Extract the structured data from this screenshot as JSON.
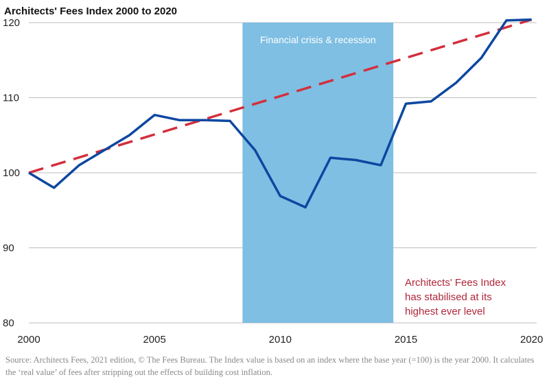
{
  "title": "Architects' Fees Index 2000 to 2020",
  "source": "Source:  Architects Fees, 2021 edition, © The Fees Bureau. The Index value is based on an index where the base year (=100) is the year 2000. It calculates the ‘real value’ of fees after stripping out the effects of building cost inflation.",
  "colors": {
    "index_line": "#0d47a1",
    "trend_line": "#d32f3c",
    "band": "#7fbfe3",
    "annotation": "#b0263a",
    "grid": "#bdbdbd"
  },
  "chart_data": {
    "type": "line",
    "title": "Architects' Fees Index 2000 to 2020",
    "xlabel": "",
    "ylabel": "",
    "xlim": [
      2000,
      2020.2
    ],
    "ylim": [
      80,
      121
    ],
    "x_ticks": [
      2000,
      2005,
      2010,
      2015,
      2020
    ],
    "y_ticks": [
      80,
      90,
      100,
      110,
      120
    ],
    "grid": "horizontal",
    "series": [
      {
        "style": "solid",
        "x": [
          2000,
          2001,
          2002,
          2003,
          2004,
          2005,
          2006,
          2007,
          2008,
          2009,
          2010,
          2011,
          2012,
          2013,
          2014,
          2015,
          2016,
          2017,
          2018,
          2019,
          2020
        ],
        "y": [
          100,
          98,
          101,
          103,
          105,
          107.7,
          107,
          107,
          106.9,
          103,
          96.9,
          95.4,
          102,
          101.7,
          101,
          109.2,
          109.5,
          112,
          115.3,
          120.3,
          120.4
        ]
      },
      {
        "style": "dashed",
        "x": [
          2000,
          2020
        ],
        "y": [
          100,
          120.4
        ]
      }
    ],
    "shaded_region": {
      "x": [
        2008.5,
        2014.5
      ],
      "label": "Financial crisis & recession"
    },
    "annotation": [
      "Architects' Fees Index",
      "has stabilised at its",
      "highest ever level"
    ]
  }
}
